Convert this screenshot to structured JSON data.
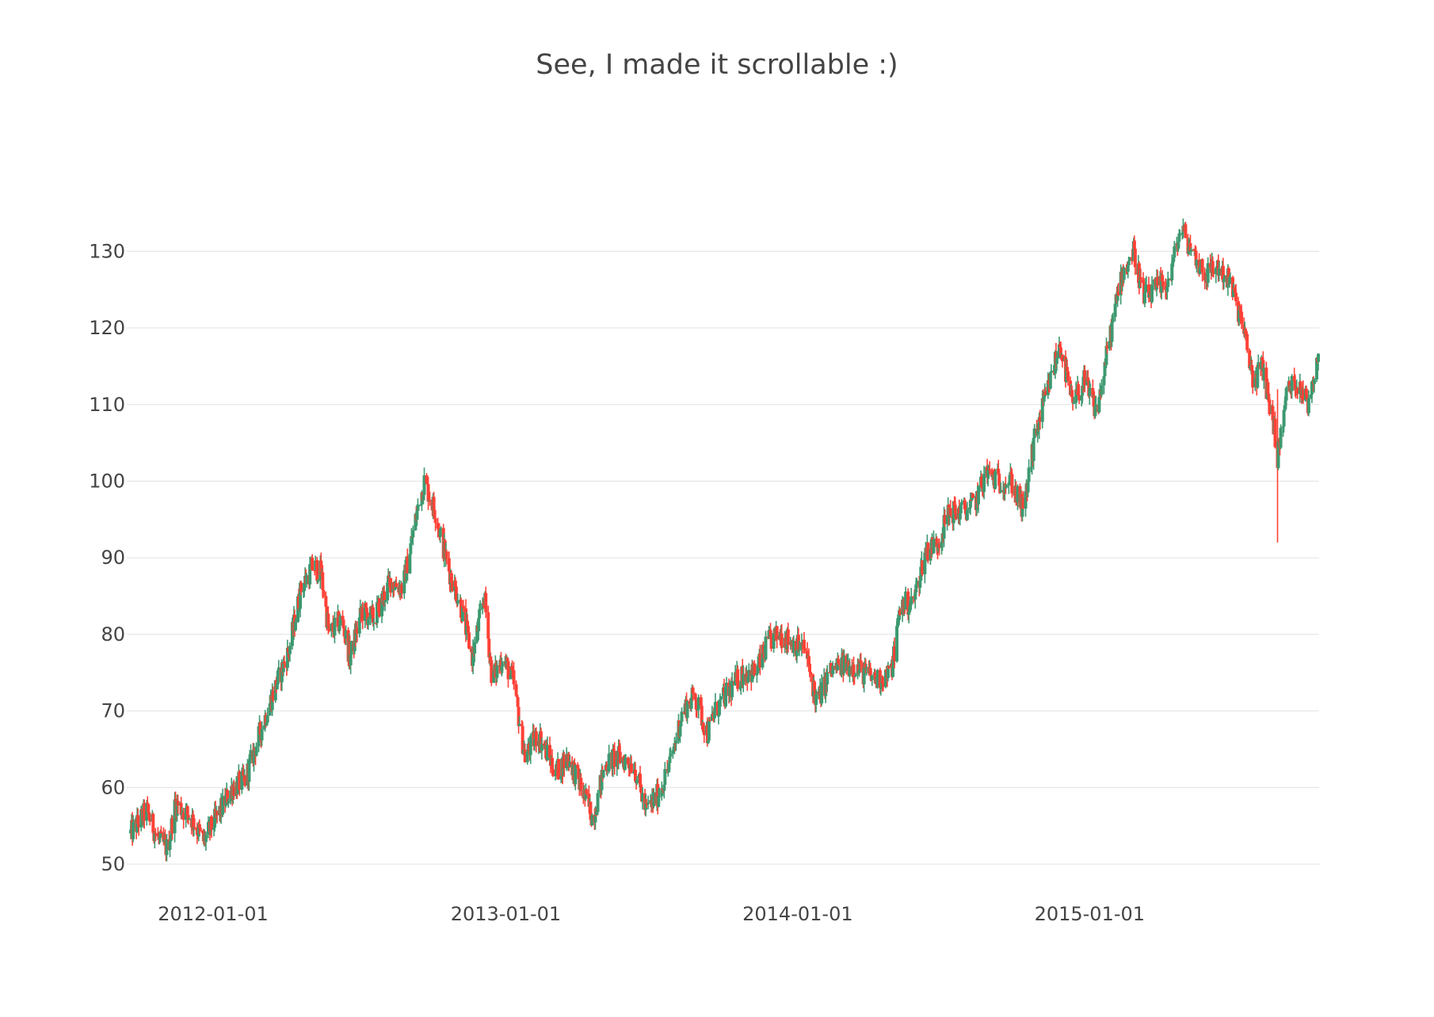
{
  "chart_data": {
    "type": "candlestick",
    "title": "See, I made it scrollable :)",
    "xlabel": "",
    "ylabel": "",
    "x_range": [
      "2011-09-15",
      "2015-10-15"
    ],
    "ylim": [
      47,
      138
    ],
    "y_ticks": [
      50,
      60,
      70,
      80,
      90,
      100,
      110,
      120,
      130
    ],
    "x_ticks": [
      "2012-01-01",
      "2013-01-01",
      "2014-01-01",
      "2015-01-01"
    ],
    "grid": true,
    "increasing_color": "#3D9970",
    "decreasing_color": "#FF4136",
    "legend": "none",
    "close_path": [
      [
        "2011-09-20",
        54
      ],
      [
        "2011-10-10",
        57
      ],
      [
        "2011-10-25",
        53
      ],
      [
        "2011-11-05",
        52
      ],
      [
        "2011-11-15",
        58
      ],
      [
        "2011-12-05",
        56
      ],
      [
        "2011-12-20",
        53
      ],
      [
        "2012-01-05",
        56
      ],
      [
        "2012-01-25",
        60
      ],
      [
        "2012-02-10",
        61
      ],
      [
        "2012-02-25",
        66
      ],
      [
        "2012-03-15",
        72
      ],
      [
        "2012-04-05",
        78
      ],
      [
        "2012-04-20",
        86
      ],
      [
        "2012-05-05",
        89
      ],
      [
        "2012-05-15",
        88
      ],
      [
        "2012-05-25",
        80
      ],
      [
        "2012-06-10",
        82
      ],
      [
        "2012-06-20",
        77
      ],
      [
        "2012-07-05",
        83
      ],
      [
        "2012-07-20",
        82
      ],
      [
        "2012-08-10",
        87
      ],
      [
        "2012-08-25",
        86
      ],
      [
        "2012-09-10",
        95
      ],
      [
        "2012-09-21",
        100
      ],
      [
        "2012-10-05",
        96
      ],
      [
        "2012-10-20",
        89
      ],
      [
        "2012-11-05",
        84
      ],
      [
        "2012-11-20",
        77
      ],
      [
        "2012-12-05",
        85
      ],
      [
        "2012-12-15",
        74
      ],
      [
        "2012-12-28",
        77
      ],
      [
        "2013-01-10",
        74
      ],
      [
        "2013-01-25",
        64
      ],
      [
        "2013-02-10",
        67
      ],
      [
        "2013-03-05",
        62
      ],
      [
        "2013-03-20",
        64
      ],
      [
        "2013-04-05",
        60
      ],
      [
        "2013-04-20",
        56
      ],
      [
        "2013-05-05",
        63
      ],
      [
        "2013-05-20",
        64
      ],
      [
        "2013-06-10",
        63
      ],
      [
        "2013-06-25",
        57
      ],
      [
        "2013-07-10",
        59
      ],
      [
        "2013-07-25",
        63
      ],
      [
        "2013-08-10",
        70
      ],
      [
        "2013-08-25",
        72
      ],
      [
        "2013-09-10",
        67
      ],
      [
        "2013-09-20",
        70
      ],
      [
        "2013-10-10",
        73
      ],
      [
        "2013-10-25",
        75
      ],
      [
        "2013-11-10",
        75
      ],
      [
        "2013-11-25",
        79
      ],
      [
        "2013-12-10",
        80
      ],
      [
        "2013-12-25",
        79
      ],
      [
        "2014-01-10",
        78
      ],
      [
        "2014-01-25",
        71
      ],
      [
        "2014-02-10",
        75
      ],
      [
        "2014-02-25",
        76
      ],
      [
        "2014-03-10",
        76
      ],
      [
        "2014-03-25",
        75
      ],
      [
        "2014-04-10",
        74
      ],
      [
        "2014-04-28",
        75
      ],
      [
        "2014-05-10",
        84
      ],
      [
        "2014-05-25",
        84
      ],
      [
        "2014-06-10",
        91
      ],
      [
        "2014-06-25",
        92
      ],
      [
        "2014-07-10",
        96
      ],
      [
        "2014-07-25",
        96
      ],
      [
        "2014-08-10",
        97
      ],
      [
        "2014-08-25",
        101
      ],
      [
        "2014-09-10",
        100
      ],
      [
        "2014-09-25",
        100
      ],
      [
        "2014-10-10",
        96
      ],
      [
        "2014-10-25",
        106
      ],
      [
        "2014-11-10",
        112
      ],
      [
        "2014-11-25",
        118
      ],
      [
        "2014-12-10",
        110
      ],
      [
        "2014-12-25",
        113
      ],
      [
        "2015-01-10",
        109
      ],
      [
        "2015-01-25",
        118
      ],
      [
        "2015-02-10",
        127
      ],
      [
        "2015-02-25",
        130
      ],
      [
        "2015-03-10",
        124
      ],
      [
        "2015-03-25",
        125
      ],
      [
        "2015-04-10",
        126
      ],
      [
        "2015-04-25",
        133
      ],
      [
        "2015-05-10",
        130
      ],
      [
        "2015-05-25",
        127
      ],
      [
        "2015-06-10",
        128
      ],
      [
        "2015-06-25",
        126
      ],
      [
        "2015-07-10",
        121
      ],
      [
        "2015-07-25",
        113
      ],
      [
        "2015-08-05",
        115
      ],
      [
        "2015-08-20",
        107
      ],
      [
        "2015-08-24",
        103
      ],
      [
        "2015-09-05",
        112
      ],
      [
        "2015-09-20",
        113
      ],
      [
        "2015-10-01",
        110
      ],
      [
        "2015-10-14",
        117
      ]
    ],
    "notable_wicks": [
      {
        "date": "2015-08-24",
        "low": 92,
        "high": 112
      }
    ]
  }
}
